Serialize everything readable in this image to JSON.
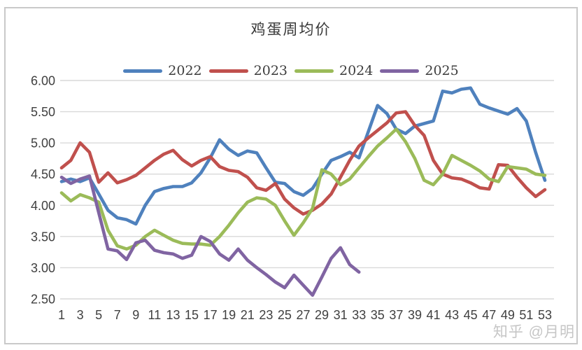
{
  "watermark": "知乎 @月明",
  "chart_data": {
    "type": "line",
    "title": "鸡蛋周均价",
    "xlabel": "",
    "ylabel": "",
    "legend_position": "top-center",
    "grid": "horizontal",
    "x_max": 53,
    "x_ticks": [
      1,
      3,
      5,
      7,
      9,
      11,
      13,
      15,
      17,
      19,
      21,
      23,
      25,
      27,
      29,
      31,
      33,
      35,
      37,
      39,
      41,
      43,
      45,
      47,
      49,
      51,
      53
    ],
    "ylim": [
      2.5,
      6.0
    ],
    "y_ticks": [
      "2.50",
      "3.00",
      "3.50",
      "4.00",
      "4.50",
      "5.00",
      "5.50",
      "6.00"
    ],
    "axis_color": "#d9d9d9",
    "series": [
      {
        "name": "2022",
        "color": "#4F81BD",
        "start_week": 1,
        "values": [
          4.38,
          4.42,
          4.38,
          4.44,
          4.18,
          3.92,
          3.8,
          3.77,
          3.7,
          4.0,
          4.22,
          4.27,
          4.3,
          4.3,
          4.36,
          4.52,
          4.76,
          5.05,
          4.9,
          4.8,
          4.87,
          4.84,
          4.6,
          4.37,
          4.35,
          4.22,
          4.16,
          4.27,
          4.5,
          4.72,
          4.78,
          4.85,
          4.76,
          5.18,
          5.6,
          5.47,
          5.22,
          5.15,
          5.27,
          5.31,
          5.35,
          5.83,
          5.8,
          5.86,
          5.88,
          5.62,
          5.56,
          5.51,
          5.46,
          5.55,
          5.35,
          4.85,
          4.4
        ]
      },
      {
        "name": "2023",
        "color": "#C0504D",
        "start_week": 1,
        "values": [
          4.6,
          4.72,
          5.0,
          4.85,
          4.37,
          4.52,
          4.36,
          4.41,
          4.48,
          4.6,
          4.72,
          4.82,
          4.88,
          4.73,
          4.63,
          4.72,
          4.78,
          4.62,
          4.56,
          4.54,
          4.45,
          4.28,
          4.24,
          4.35,
          4.1,
          3.96,
          3.86,
          3.92,
          4.02,
          4.18,
          4.45,
          4.72,
          4.95,
          5.08,
          5.2,
          5.32,
          5.48,
          5.5,
          5.28,
          5.12,
          4.72,
          4.5,
          4.44,
          4.42,
          4.36,
          4.28,
          4.26,
          4.65,
          4.64,
          4.45,
          4.28,
          4.14,
          4.25
        ]
      },
      {
        "name": "2024",
        "color": "#9BBB59",
        "start_week": 1,
        "values": [
          4.2,
          4.07,
          4.17,
          4.12,
          4.05,
          3.6,
          3.35,
          3.3,
          3.36,
          3.5,
          3.6,
          3.52,
          3.44,
          3.39,
          3.38,
          3.38,
          3.36,
          3.5,
          3.68,
          3.88,
          4.05,
          4.12,
          4.1,
          4.0,
          3.75,
          3.52,
          3.72,
          3.95,
          4.57,
          4.5,
          4.33,
          4.42,
          4.6,
          4.78,
          4.95,
          5.08,
          5.22,
          5.02,
          4.75,
          4.4,
          4.33,
          4.5,
          4.8,
          4.72,
          4.64,
          4.55,
          4.42,
          4.38,
          4.62,
          4.6,
          4.58,
          4.5,
          4.48
        ]
      },
      {
        "name": "2025",
        "color": "#8064A2",
        "start_week": 1,
        "values": [
          4.45,
          4.35,
          4.42,
          4.47,
          3.88,
          3.3,
          3.27,
          3.13,
          3.4,
          3.44,
          3.28,
          3.24,
          3.22,
          3.15,
          3.2,
          3.5,
          3.42,
          3.22,
          3.12,
          3.3,
          3.12,
          3.0,
          2.89,
          2.77,
          2.68,
          2.88,
          2.72,
          2.56,
          2.85,
          3.15,
          3.32,
          3.05,
          2.93
        ]
      }
    ]
  }
}
